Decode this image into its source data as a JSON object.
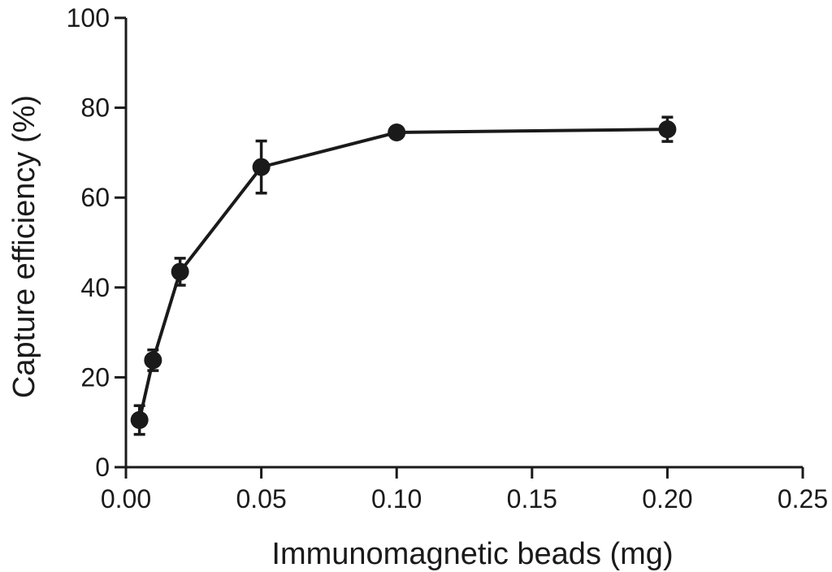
{
  "chart_data": {
    "type": "line",
    "title": "",
    "xlabel": "Immunomagnetic beads (mg)",
    "ylabel": "Capture efficiency (%)",
    "xlim": [
      0,
      0.25
    ],
    "ylim": [
      0,
      100
    ],
    "xticks": [
      0,
      0.05,
      0.1,
      0.15,
      0.2,
      0.25
    ],
    "xtick_labels": [
      "0.00",
      "0.05",
      "0.10",
      "0.15",
      "0.20",
      "0.25"
    ],
    "yticks": [
      0,
      20,
      40,
      60,
      80,
      100
    ],
    "ytick_labels": [
      "0",
      "20",
      "40",
      "60",
      "80",
      "100"
    ],
    "grid": false,
    "series": [
      {
        "x": [
          0.005,
          0.01,
          0.02,
          0.05,
          0.1,
          0.2
        ],
        "y": [
          10.5,
          23.8,
          43.5,
          66.8,
          74.5,
          75.2
        ],
        "error": [
          3.2,
          2.3,
          3.0,
          5.8,
          0.5,
          2.7
        ],
        "color": "#1a1a1a",
        "marker": "circle"
      }
    ]
  }
}
